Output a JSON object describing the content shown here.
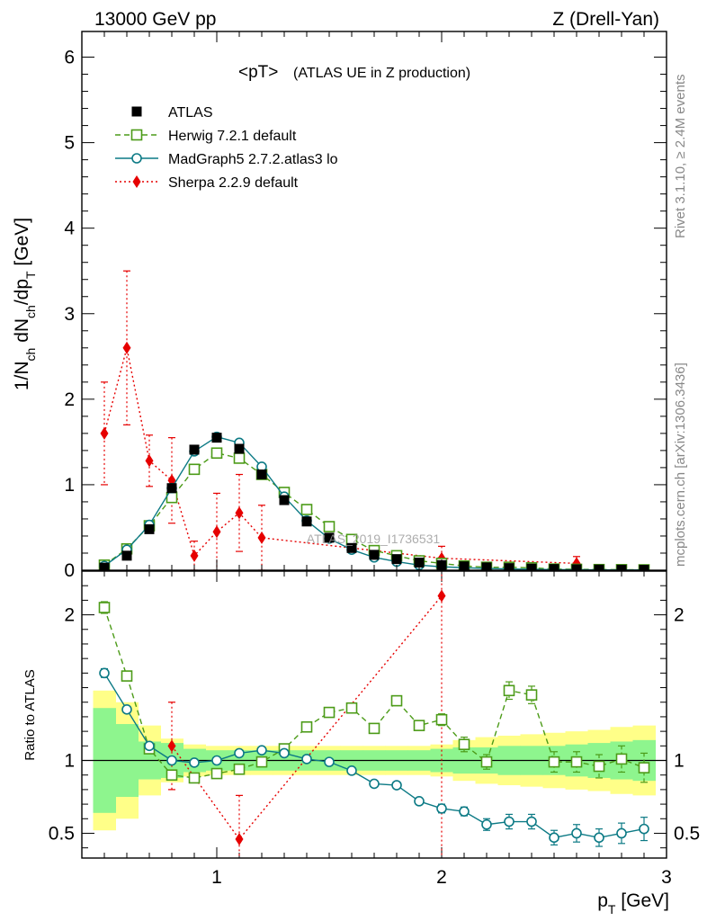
{
  "header": {
    "left": "13000 GeV pp",
    "right": "Z (Drell-Yan)"
  },
  "side_labels": {
    "rivet": "Rivet 3.1.10, ≥ 2.4M events",
    "mcplots": "mcplots.cern.ch [arXiv:1306.3436]"
  },
  "watermark": "ATLAS_2019_I1736531",
  "chart_data": [
    {
      "type": "scatter",
      "panel": "main",
      "title_main": "<pT>",
      "title_sub": "(ATLAS UE in Z production)",
      "ylabel": "1/N_ch dN_ch/dp_T [GeV]",
      "xlim": [
        0.4,
        3.0
      ],
      "ylim": [
        0,
        6.3
      ],
      "yticks": [
        0,
        1,
        2,
        3,
        4,
        5,
        6
      ],
      "legend_placement": "top-left",
      "x": [
        0.5,
        0.6,
        0.7,
        0.8,
        0.9,
        1.0,
        1.1,
        1.2,
        1.3,
        1.4,
        1.5,
        1.6,
        1.7,
        1.8,
        1.9,
        2.0,
        2.1,
        2.2,
        2.3,
        2.4,
        2.5,
        2.6,
        2.7,
        2.8,
        2.9
      ],
      "series": [
        {
          "name": "ATLAS",
          "color": "#000000",
          "marker": "filled-square",
          "values": [
            0.03,
            0.17,
            0.48,
            0.96,
            1.41,
            1.55,
            1.42,
            1.12,
            0.82,
            0.57,
            0.38,
            0.26,
            0.18,
            0.13,
            0.09,
            0.06,
            0.045,
            0.033,
            0.025,
            0.019,
            0.014,
            0.011,
            0.008,
            0.006,
            0.005
          ]
        },
        {
          "name": "Herwig 7.2.1 default",
          "color": "#4c9b18",
          "marker": "open-square",
          "line": "dashed",
          "values": [
            0.06,
            0.25,
            0.52,
            0.85,
            1.18,
            1.37,
            1.31,
            1.12,
            0.91,
            0.71,
            0.51,
            0.36,
            0.23,
            0.17,
            0.11,
            0.08,
            0.05,
            0.035,
            0.035,
            0.028,
            0.014,
            0.011,
            0.008,
            0.007,
            0.005
          ]
        },
        {
          "name": "MadGraph5 2.7.2.atlas3 lo",
          "color": "#0c7a85",
          "marker": "open-circle",
          "line": "solid",
          "values": [
            0.05,
            0.24,
            0.53,
            0.96,
            1.39,
            1.56,
            1.49,
            1.21,
            0.86,
            0.58,
            0.37,
            0.24,
            0.15,
            0.1,
            0.06,
            0.04,
            0.03,
            0.02,
            0.015,
            0.011,
            0.007,
            0.006,
            0.004,
            0.003,
            0.003
          ]
        },
        {
          "name": "Sherpa 2.2.9 default",
          "color": "#e60000",
          "marker": "filled-diamond",
          "line": "dotted",
          "x": [
            0.5,
            0.6,
            0.7,
            0.8,
            0.9,
            1.0,
            1.1,
            1.2,
            2.0,
            2.6
          ],
          "values": [
            1.6,
            2.6,
            1.28,
            1.05,
            0.17,
            0.45,
            0.67,
            0.38,
            0.14,
            0.08
          ],
          "errors": [
            0.6,
            0.9,
            0.3,
            0.5,
            0.17,
            0.45,
            0.45,
            0.38,
            0.14,
            0.08
          ]
        }
      ]
    },
    {
      "type": "line",
      "panel": "ratio",
      "ylabel": "Ratio to ATLAS",
      "xlabel": "p_T [GeV]",
      "xlim": [
        0.4,
        3.0
      ],
      "ylim": [
        0.33,
        2.3
      ],
      "yticks": [
        0.5,
        1,
        2
      ],
      "xticks": [
        1,
        2,
        3
      ],
      "x": [
        0.5,
        0.6,
        0.7,
        0.8,
        0.9,
        1.0,
        1.1,
        1.2,
        1.3,
        1.4,
        1.5,
        1.6,
        1.7,
        1.8,
        1.9,
        2.0,
        2.1,
        2.2,
        2.3,
        2.4,
        2.5,
        2.6,
        2.7,
        2.8,
        2.9
      ],
      "bands": {
        "inner_color": "#8ef58e",
        "outer_color": "#ffff88",
        "inner": [
          0.36,
          0.25,
          0.13,
          0.12,
          0.08,
          0.07,
          0.07,
          0.07,
          0.07,
          0.07,
          0.07,
          0.07,
          0.07,
          0.07,
          0.07,
          0.08,
          0.09,
          0.09,
          0.1,
          0.1,
          0.1,
          0.11,
          0.12,
          0.13,
          0.14
        ],
        "outer": [
          0.48,
          0.4,
          0.24,
          0.15,
          0.11,
          0.1,
          0.1,
          0.1,
          0.1,
          0.1,
          0.1,
          0.1,
          0.1,
          0.1,
          0.1,
          0.11,
          0.14,
          0.16,
          0.17,
          0.18,
          0.19,
          0.2,
          0.21,
          0.23,
          0.24
        ]
      },
      "series": [
        {
          "name": "Herwig 7.2.1 default",
          "color": "#4c9b18",
          "marker": "open-square",
          "line": "dashed",
          "values": [
            2.05,
            1.58,
            1.08,
            0.9,
            0.88,
            0.91,
            0.94,
            0.99,
            1.08,
            1.23,
            1.33,
            1.36,
            1.22,
            1.41,
            1.24,
            1.28,
            1.11,
            0.99,
            1.48,
            1.45,
            0.99,
            0.99,
            0.96,
            1.01,
            0.95
          ],
          "errors": [
            0.04,
            0.03,
            0.02,
            0.02,
            0.01,
            0.01,
            0.01,
            0.01,
            0.01,
            0.01,
            0.01,
            0.02,
            0.02,
            0.02,
            0.03,
            0.04,
            0.05,
            0.05,
            0.06,
            0.06,
            0.07,
            0.07,
            0.08,
            0.09,
            0.1
          ]
        },
        {
          "name": "MadGraph5 2.7.2.atlas3 lo",
          "color": "#0c7a85",
          "marker": "open-circle",
          "line": "solid",
          "values": [
            1.6,
            1.35,
            1.1,
            1.0,
            0.985,
            1.0,
            1.05,
            1.07,
            1.05,
            1.01,
            0.99,
            0.93,
            0.84,
            0.83,
            0.72,
            0.67,
            0.65,
            0.56,
            0.58,
            0.58,
            0.47,
            0.5,
            0.47,
            0.5,
            0.53
          ],
          "errors": [
            0.03,
            0.02,
            0.01,
            0.01,
            0.01,
            0.01,
            0.01,
            0.01,
            0.01,
            0.01,
            0.01,
            0.01,
            0.01,
            0.02,
            0.02,
            0.03,
            0.03,
            0.04,
            0.05,
            0.05,
            0.05,
            0.06,
            0.06,
            0.07,
            0.08
          ]
        },
        {
          "name": "Sherpa 2.2.9 default",
          "color": "#e60000",
          "marker": "filled-diamond",
          "line": "dotted",
          "x": [
            0.8,
            1.1,
            2.0
          ],
          "values": [
            1.1,
            0.46,
            2.13
          ],
          "errors": [
            0.3,
            0.3,
            2.0
          ]
        }
      ]
    }
  ]
}
